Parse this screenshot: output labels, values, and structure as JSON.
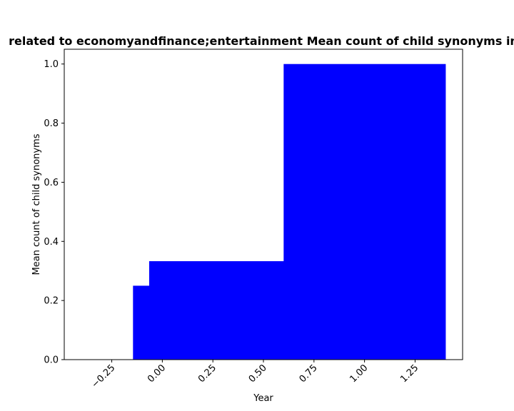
{
  "chart_data": {
    "type": "bar",
    "title": "related to economyandfinance;entertainment Mean count of child synonyms in",
    "xlabel": "Year",
    "ylabel": "Mean count of child synonyms",
    "xlim": [
      -0.485,
      1.485
    ],
    "ylim": [
      0,
      1.05
    ],
    "x_ticks": [
      -0.25,
      0.0,
      0.25,
      0.5,
      0.75,
      1.0,
      1.25
    ],
    "x_tick_labels": [
      "−0.25",
      "0.00",
      "0.25",
      "0.50",
      "0.75",
      "1.00",
      "1.25"
    ],
    "y_ticks": [
      0.0,
      0.2,
      0.4,
      0.6,
      0.8,
      1.0
    ],
    "y_tick_labels": [
      "0.0",
      "0.2",
      "0.4",
      "0.6",
      "0.8",
      "1.0"
    ],
    "grid": false,
    "legend": "none",
    "bar_color": "#0000ff",
    "bars": [
      {
        "x_start": -0.145,
        "x_end": -0.065,
        "value": 0.25
      },
      {
        "x_start": -0.065,
        "x_end": 0.6,
        "value": 0.333
      },
      {
        "x_start": 0.6,
        "x_end": 1.4,
        "value": 1.0
      }
    ]
  }
}
